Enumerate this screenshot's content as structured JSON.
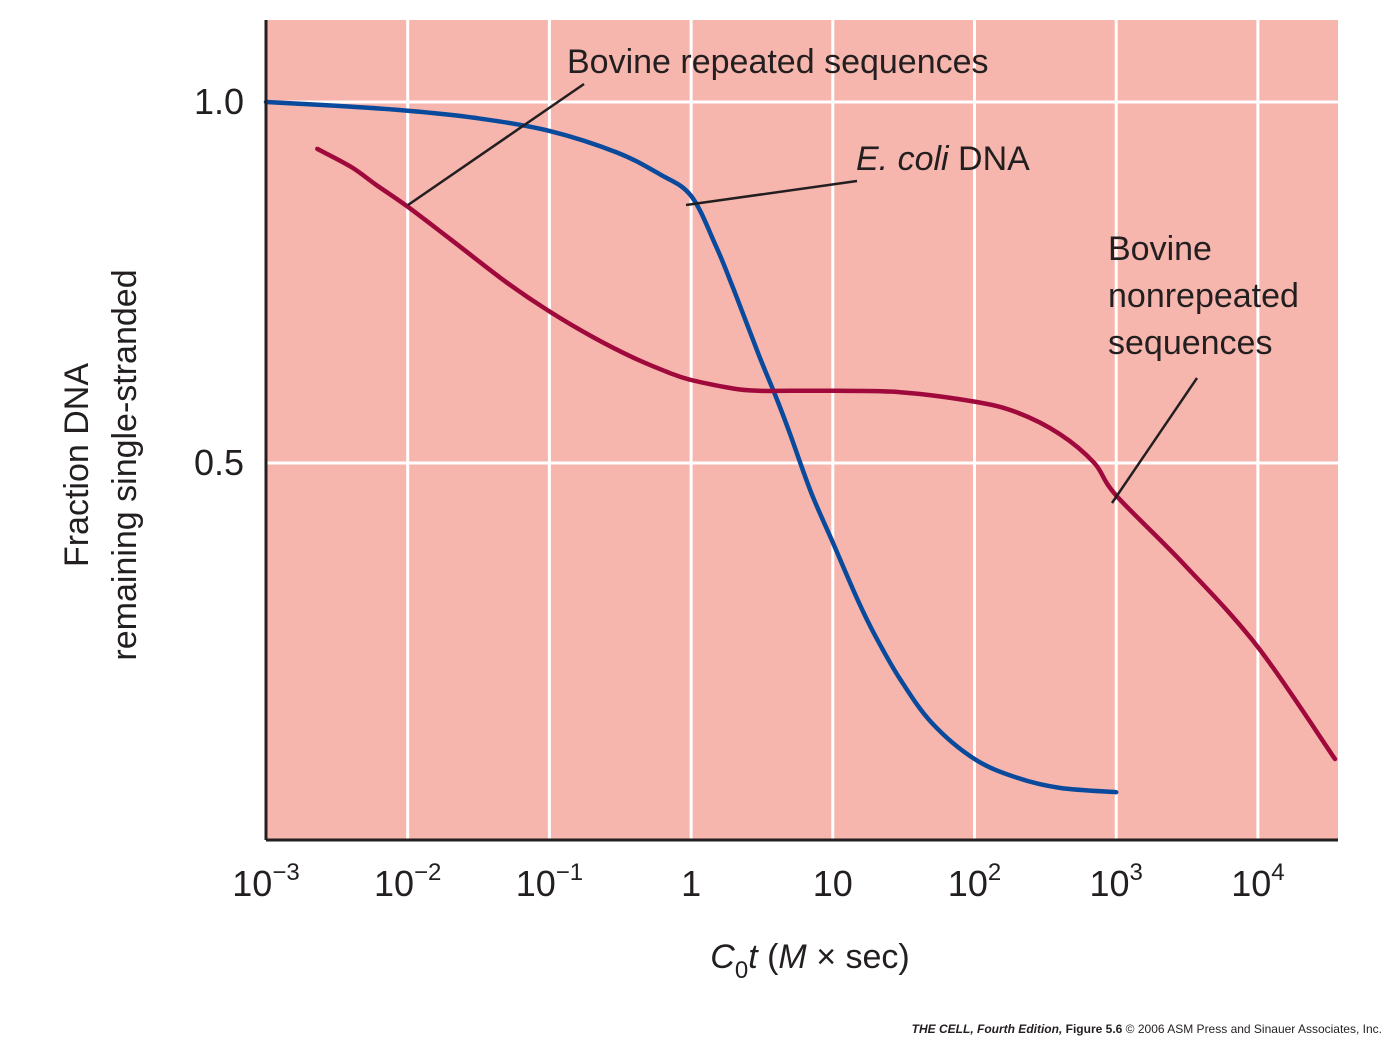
{
  "chart_data": {
    "type": "line",
    "x_scale": "log",
    "xlim": [
      0.001,
      50000
    ],
    "ylim": [
      0.03,
      1.12
    ],
    "grid": true,
    "background_color": "#f6b6ad",
    "grid_color": "#ffffff",
    "xlabel": {
      "c": "C",
      "sub": "0",
      "t": "t",
      "rest1": " (",
      "m": "M",
      "rest2": " × sec)"
    },
    "ylabel_lines": [
      "Fraction DNA",
      "remaining single-stranded"
    ],
    "x_ticks": [
      {
        "value": 0.001,
        "base": "10",
        "exp": "−3"
      },
      {
        "value": 0.01,
        "base": "10",
        "exp": "−2"
      },
      {
        "value": 0.1,
        "base": "10",
        "exp": "−1"
      },
      {
        "value": 1,
        "base": "1",
        "exp": ""
      },
      {
        "value": 10,
        "base": "10",
        "exp": ""
      },
      {
        "value": 100,
        "base": "10",
        "exp": "2"
      },
      {
        "value": 1000,
        "base": "10",
        "exp": "3"
      },
      {
        "value": 10000,
        "base": "10",
        "exp": "4"
      }
    ],
    "y_ticks": [
      {
        "value": 0.5,
        "label": "0.5"
      },
      {
        "value": 1.0,
        "label": "1.0"
      }
    ],
    "series": [
      {
        "name": "E. coli DNA",
        "color": "#0a4a9c",
        "x": [
          0.001,
          0.003,
          0.01,
          0.03,
          0.1,
          0.3,
          0.6,
          1,
          1.5,
          2,
          3,
          4,
          5,
          7,
          10,
          15,
          20,
          30,
          50,
          100,
          200,
          400,
          1000
        ],
        "y": [
          1.0,
          0.995,
          0.988,
          0.978,
          0.96,
          0.93,
          0.9,
          0.87,
          0.8,
          0.74,
          0.65,
          0.59,
          0.54,
          0.46,
          0.39,
          0.31,
          0.26,
          0.2,
          0.14,
          0.09,
          0.064,
          0.05,
          0.044
        ]
      },
      {
        "name": "Bovine DNA",
        "color": "#a0093c",
        "x": [
          0.0023,
          0.004,
          0.006,
          0.01,
          0.02,
          0.05,
          0.1,
          0.2,
          0.4,
          0.7,
          1,
          2,
          3,
          5,
          10,
          30,
          100,
          200,
          400,
          700,
          1000,
          3000,
          10000,
          35000
        ],
        "y": [
          0.935,
          0.91,
          0.885,
          0.855,
          0.81,
          0.75,
          0.71,
          0.675,
          0.645,
          0.625,
          0.615,
          0.603,
          0.6,
          0.6,
          0.6,
          0.598,
          0.585,
          0.57,
          0.54,
          0.5,
          0.455,
          0.36,
          0.245,
          0.09
        ]
      }
    ],
    "annotations": [
      {
        "text": "Bovine repeated sequences",
        "points_to": "Bovine DNA"
      },
      {
        "italic": "E. coli",
        "text": " DNA",
        "points_to": "E. coli DNA"
      },
      {
        "lines": [
          "Bovine",
          "nonrepeated",
          "sequences"
        ],
        "points_to": "Bovine DNA"
      }
    ]
  },
  "credit": {
    "title": "THE CELL, Fourth Edition,",
    "figure": " Figure 5.6",
    "copyright": "  © 2006 ASM Press and Sinauer Associates, Inc."
  }
}
